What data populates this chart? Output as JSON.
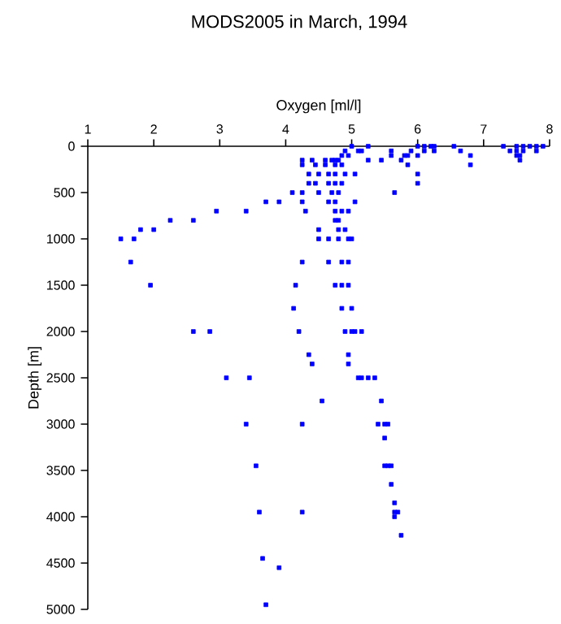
{
  "chart_data": {
    "type": "scatter",
    "title": "MODS2005 in March, 1994",
    "xlabel": "Oxygen [ml/l]",
    "ylabel": "Depth [m]",
    "xlim": [
      1,
      8
    ],
    "xticks": [
      1,
      2,
      3,
      4,
      5,
      6,
      7,
      8
    ],
    "ylim": [
      5000,
      0
    ],
    "yticks": [
      0,
      500,
      1000,
      1500,
      2000,
      2500,
      3000,
      3500,
      4000,
      4500,
      5000
    ],
    "grid": false,
    "marker": "square",
    "series": [
      {
        "color": "#0000ff",
        "x": [
          5.0,
          5.25,
          6.0,
          6.1,
          6.2,
          6.25,
          6.55,
          7.3,
          7.5,
          7.6,
          7.7,
          7.8,
          7.9,
          4.9,
          5.1,
          5.15,
          5.6,
          5.9,
          6.1,
          6.25,
          6.65,
          7.4,
          7.5,
          7.6,
          7.8,
          4.85,
          4.95,
          5.6,
          5.8,
          5.85,
          6.0,
          6.8,
          7.5,
          7.55,
          4.25,
          4.4,
          4.6,
          4.7,
          4.75,
          4.8,
          5.25,
          5.45,
          5.75,
          7.55,
          4.25,
          4.45,
          4.6,
          4.75,
          4.85,
          5.85,
          6.8,
          4.35,
          4.5,
          4.65,
          4.75,
          4.9,
          5.05,
          6.0,
          4.35,
          4.45,
          4.65,
          4.75,
          4.85,
          6.0,
          4.1,
          4.25,
          4.5,
          4.7,
          4.8,
          5.65,
          3.7,
          3.9,
          4.25,
          4.65,
          4.75,
          5.05,
          2.95,
          3.4,
          4.3,
          4.75,
          4.85,
          4.95,
          2.25,
          2.6,
          4.75,
          4.8,
          1.8,
          2.0,
          4.5,
          4.8,
          4.9,
          1.5,
          1.7,
          4.5,
          4.65,
          4.8,
          4.95,
          5.0,
          1.65,
          4.25,
          4.65,
          4.85,
          4.95,
          1.95,
          4.15,
          4.75,
          4.85,
          4.95,
          4.12,
          4.85,
          5.0,
          2.6,
          2.85,
          4.2,
          4.9,
          5.0,
          5.05,
          5.15,
          4.35,
          4.95,
          4.4,
          4.95,
          3.1,
          3.45,
          5.1,
          5.15,
          5.25,
          5.35,
          5.45,
          4.55,
          3.4,
          4.25,
          5.4,
          5.5,
          5.55,
          5.5,
          3.55,
          5.5,
          5.55,
          5.6,
          5.6,
          5.65,
          3.6,
          4.25,
          5.65,
          5.7,
          5.65,
          5.75,
          3.65,
          3.9,
          3.7
        ],
        "values": [
          0,
          0,
          0,
          0,
          0,
          0,
          0,
          0,
          0,
          0,
          0,
          0,
          0,
          50,
          50,
          50,
          50,
          50,
          50,
          50,
          50,
          50,
          50,
          50,
          50,
          100,
          100,
          100,
          100,
          100,
          100,
          100,
          100,
          100,
          150,
          150,
          150,
          150,
          150,
          150,
          150,
          150,
          150,
          150,
          200,
          200,
          200,
          200,
          200,
          200,
          200,
          300,
          300,
          300,
          300,
          300,
          300,
          300,
          400,
          400,
          400,
          400,
          400,
          400,
          500,
          500,
          500,
          500,
          500,
          500,
          600,
          600,
          600,
          600,
          600,
          600,
          700,
          700,
          700,
          700,
          700,
          700,
          800,
          800,
          800,
          800,
          900,
          900,
          900,
          900,
          900,
          1000,
          1000,
          1000,
          1000,
          1000,
          1000,
          1000,
          1250,
          1250,
          1250,
          1250,
          1250,
          1500,
          1500,
          1500,
          1500,
          1500,
          1750,
          1750,
          1750,
          2000,
          2000,
          2000,
          2000,
          2000,
          2000,
          2000,
          2250,
          2250,
          2350,
          2350,
          2500,
          2500,
          2500,
          2500,
          2500,
          2500,
          2750,
          2750,
          3000,
          3000,
          3000,
          3000,
          3000,
          3150,
          3450,
          3450,
          3450,
          3450,
          3650,
          3850,
          3950,
          3950,
          3950,
          3950,
          4000,
          4200,
          4450,
          4550,
          4950
        ]
      }
    ]
  }
}
